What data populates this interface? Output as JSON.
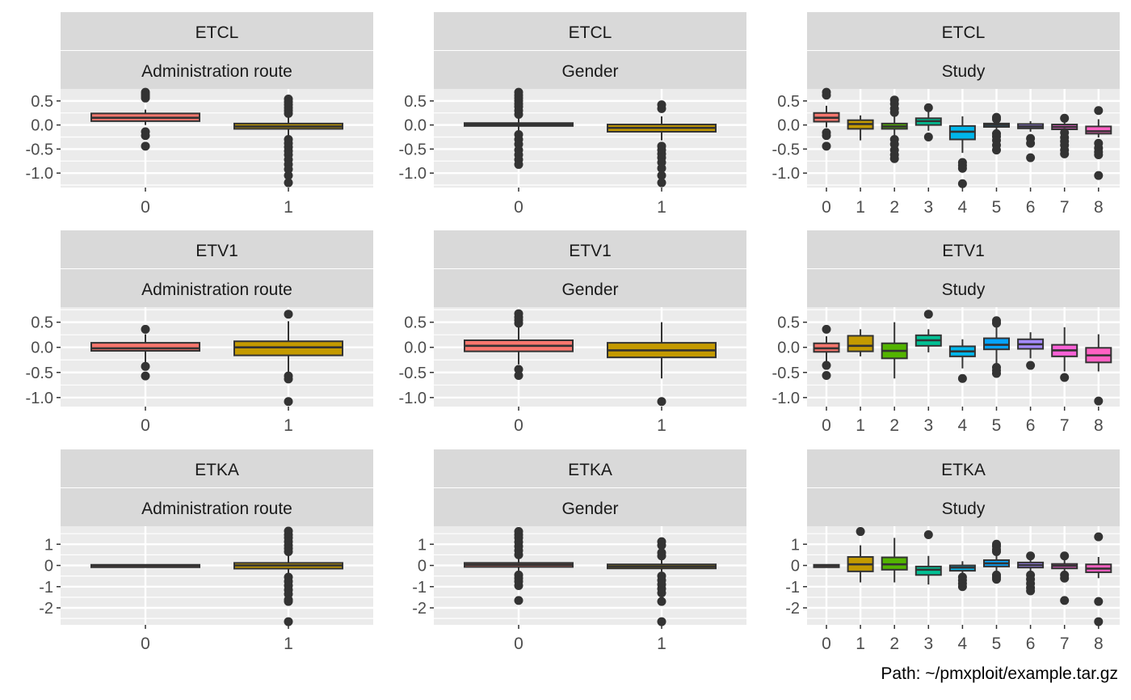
{
  "caption": "Path: ~/pmxploit/example.tar.gz",
  "colors": {
    "panel_bg": "#ebebeb",
    "strip_bg": "#d9d9d9",
    "grid": "#ffffff",
    "box_outline": "#333333",
    "fill_admin_route": [
      "#F8766D",
      "#C49A00"
    ],
    "fill_gender": [
      "#F8766D",
      "#C49A00"
    ],
    "fill_study": [
      "#F8766D",
      "#C49A00",
      "#53B400",
      "#00C094",
      "#00B6EB",
      "#06A4FF",
      "#A58AFF",
      "#FB61D7",
      "#FF61C3"
    ]
  },
  "chart_data": [
    {
      "type": "boxplot",
      "strip_top": "ETCL",
      "strip_bottom": "Administration route",
      "categories": [
        "0",
        "1"
      ],
      "yticks": [
        "0.5",
        "0.0",
        "-0.5",
        "-1.0"
      ],
      "ylim": [
        -1.3,
        0.75
      ],
      "boxes": [
        {
          "q1": 0.08,
          "median": 0.15,
          "q3": 0.24,
          "lo": 0.0,
          "hi": 0.32,
          "outliers": [
            0.68,
            0.64,
            0.6,
            0.56,
            -0.14,
            -0.22,
            -0.44
          ]
        },
        {
          "q1": -0.08,
          "median": -0.03,
          "q3": 0.03,
          "lo": -0.22,
          "hi": 0.18,
          "outliers": [
            0.54,
            0.48,
            0.42,
            0.36,
            0.3,
            0.24,
            -0.3,
            -0.38,
            -0.46,
            -0.54,
            -0.62,
            -0.72,
            -0.82,
            -0.92,
            -1.05,
            -1.2
          ]
        }
      ]
    },
    {
      "type": "boxplot",
      "strip_top": "ETCL",
      "strip_bottom": "Gender",
      "categories": [
        "0",
        "1"
      ],
      "yticks": [
        "0.5",
        "0.0",
        "-0.5",
        "-1.0"
      ],
      "ylim": [
        -1.3,
        0.75
      ],
      "boxes": [
        {
          "q1": -0.02,
          "median": 0.01,
          "q3": 0.04,
          "lo": -0.12,
          "hi": 0.14,
          "outliers": [
            0.68,
            0.62,
            0.56,
            0.5,
            0.44,
            0.38,
            0.3,
            0.22,
            -0.2,
            -0.3,
            -0.4,
            -0.52,
            -0.62,
            -0.72,
            -0.82
          ]
        },
        {
          "q1": -0.14,
          "median": -0.06,
          "q3": 0.01,
          "lo": -0.32,
          "hi": 0.18,
          "outliers": [
            0.42,
            0.34,
            -0.44,
            -0.52,
            -0.6,
            -0.68,
            -0.78,
            -0.9,
            -1.05,
            -1.2
          ]
        }
      ]
    },
    {
      "type": "boxplot",
      "strip_top": "ETCL",
      "strip_bottom": "Study",
      "categories": [
        "0",
        "1",
        "2",
        "3",
        "4",
        "5",
        "6",
        "7",
        "8"
      ],
      "yticks": [
        "0.5",
        "0.0",
        "-0.5",
        "-1.0"
      ],
      "ylim": [
        -1.3,
        0.75
      ],
      "boxes": [
        {
          "q1": 0.07,
          "median": 0.15,
          "q3": 0.25,
          "lo": -0.05,
          "hi": 0.4,
          "outliers": [
            0.68,
            0.62,
            -0.16,
            -0.22,
            -0.44
          ]
        },
        {
          "q1": -0.08,
          "median": 0.02,
          "q3": 0.1,
          "lo": -0.32,
          "hi": 0.2,
          "outliers": []
        },
        {
          "q1": -0.08,
          "median": -0.03,
          "q3": 0.03,
          "lo": -0.24,
          "hi": 0.2,
          "outliers": [
            0.52,
            0.44,
            0.34,
            0.26,
            -0.3,
            -0.4,
            -0.52,
            -0.62,
            -0.7
          ]
        },
        {
          "q1": 0.0,
          "median": 0.08,
          "q3": 0.14,
          "lo": -0.12,
          "hi": 0.3,
          "outliers": [
            0.36,
            -0.25
          ]
        },
        {
          "q1": -0.3,
          "median": -0.14,
          "q3": -0.02,
          "lo": -0.58,
          "hi": 0.18,
          "outliers": [
            -0.78,
            -0.84,
            -0.9,
            -1.22
          ]
        },
        {
          "q1": -0.04,
          "median": 0.0,
          "q3": 0.03,
          "lo": -0.16,
          "hi": 0.12,
          "outliers": [
            0.16,
            0.12,
            -0.18,
            -0.24,
            -0.32,
            -0.42,
            -0.52
          ]
        },
        {
          "q1": -0.07,
          "median": -0.03,
          "q3": 0.02,
          "lo": -0.14,
          "hi": 0.08,
          "outliers": [
            -0.28,
            -0.38,
            -0.68
          ]
        },
        {
          "q1": -0.09,
          "median": -0.04,
          "q3": 0.01,
          "lo": -0.16,
          "hi": 0.12,
          "outliers": [
            0.14,
            -0.16,
            -0.26,
            -0.34,
            -0.42,
            -0.52,
            -0.6
          ]
        },
        {
          "q1": -0.18,
          "median": -0.13,
          "q3": -0.03,
          "lo": -0.26,
          "hi": 0.12,
          "outliers": [
            0.3,
            -0.38,
            -0.48,
            -0.56,
            -0.62,
            -1.05
          ]
        }
      ]
    },
    {
      "type": "boxplot",
      "strip_top": "ETV1",
      "strip_bottom": "Administration route",
      "categories": [
        "0",
        "1"
      ],
      "yticks": [
        "0.5",
        "0.0",
        "-0.5",
        "-1.0"
      ],
      "ylim": [
        -1.18,
        0.8
      ],
      "boxes": [
        {
          "q1": -0.07,
          "median": -0.02,
          "q3": 0.09,
          "lo": -0.3,
          "hi": 0.26,
          "outliers": [
            0.36,
            -0.38,
            -0.57
          ]
        },
        {
          "q1": -0.16,
          "median": 0.0,
          "q3": 0.12,
          "lo": -0.52,
          "hi": 0.52,
          "outliers": [
            0.66,
            -0.57,
            -0.63,
            -1.08
          ]
        }
      ]
    },
    {
      "type": "boxplot",
      "strip_top": "ETV1",
      "strip_bottom": "Gender",
      "categories": [
        "0",
        "1"
      ],
      "yticks": [
        "0.5",
        "0.0",
        "-0.5",
        "-1.0"
      ],
      "ylim": [
        -1.18,
        0.8
      ],
      "boxes": [
        {
          "q1": -0.08,
          "median": 0.03,
          "q3": 0.14,
          "lo": -0.34,
          "hi": 0.44,
          "outliers": [
            0.67,
            0.6,
            0.54,
            0.48,
            -0.44,
            -0.56
          ]
        },
        {
          "q1": -0.2,
          "median": -0.06,
          "q3": 0.09,
          "lo": -0.62,
          "hi": 0.5,
          "outliers": [
            -1.08
          ]
        }
      ]
    },
    {
      "type": "boxplot",
      "strip_top": "ETV1",
      "strip_bottom": "Study",
      "categories": [
        "0",
        "1",
        "2",
        "3",
        "4",
        "5",
        "6",
        "7",
        "8"
      ],
      "yticks": [
        "0.5",
        "0.0",
        "-0.5",
        "-1.0"
      ],
      "ylim": [
        -1.18,
        0.8
      ],
      "boxes": [
        {
          "q1": -0.09,
          "median": -0.02,
          "q3": 0.08,
          "lo": -0.3,
          "hi": 0.22,
          "outliers": [
            0.36,
            -0.36,
            -0.56
          ]
        },
        {
          "q1": -0.08,
          "median": 0.03,
          "q3": 0.23,
          "lo": -0.18,
          "hi": 0.36,
          "outliers": []
        },
        {
          "q1": -0.22,
          "median": -0.07,
          "q3": 0.08,
          "lo": -0.62,
          "hi": 0.5,
          "outliers": []
        },
        {
          "q1": 0.03,
          "median": 0.14,
          "q3": 0.24,
          "lo": -0.1,
          "hi": 0.36,
          "outliers": [
            0.66
          ]
        },
        {
          "q1": -0.18,
          "median": -0.08,
          "q3": 0.02,
          "lo": -0.42,
          "hi": 0.16,
          "outliers": [
            -0.62
          ]
        },
        {
          "q1": -0.04,
          "median": 0.05,
          "q3": 0.18,
          "lo": -0.32,
          "hi": 0.42,
          "outliers": [
            0.53,
            0.48,
            -0.4,
            -0.46,
            -0.52
          ]
        },
        {
          "q1": -0.03,
          "median": 0.06,
          "q3": 0.16,
          "lo": -0.22,
          "hi": 0.3,
          "outliers": [
            -0.36
          ]
        },
        {
          "q1": -0.18,
          "median": -0.06,
          "q3": 0.05,
          "lo": -0.48,
          "hi": 0.4,
          "outliers": [
            -0.6
          ]
        },
        {
          "q1": -0.3,
          "median": -0.16,
          "q3": -0.01,
          "lo": -0.48,
          "hi": 0.26,
          "outliers": [
            -1.07
          ]
        }
      ]
    },
    {
      "type": "boxplot",
      "strip_top": "ETKA",
      "strip_bottom": "Administration route",
      "categories": [
        "0",
        "1"
      ],
      "yticks": [
        "1",
        "0",
        "-1",
        "-2"
      ],
      "ylim": [
        -2.8,
        1.85
      ],
      "boxes": [
        {
          "q1": -0.03,
          "median": 0.0,
          "q3": 0.03,
          "lo": -0.05,
          "hi": 0.05,
          "outliers": []
        },
        {
          "q1": -0.15,
          "median": 0.0,
          "q3": 0.12,
          "lo": -0.45,
          "hi": 0.5,
          "outliers": [
            1.62,
            1.45,
            1.3,
            1.12,
            0.95,
            0.8,
            0.65,
            -0.55,
            -0.75,
            -0.95,
            -1.15,
            -1.35,
            -1.62,
            -1.7,
            -2.65
          ]
        }
      ]
    },
    {
      "type": "boxplot",
      "strip_top": "ETKA",
      "strip_bottom": "Gender",
      "categories": [
        "0",
        "1"
      ],
      "yticks": [
        "1",
        "0",
        "-1",
        "-2"
      ],
      "ylim": [
        -2.8,
        1.85
      ],
      "boxes": [
        {
          "q1": -0.07,
          "median": 0.03,
          "q3": 0.12,
          "lo": -0.3,
          "hi": 0.35,
          "outliers": [
            1.6,
            1.45,
            1.3,
            1.1,
            0.9,
            0.7,
            0.5,
            -0.45,
            -0.6,
            -0.75,
            -0.95,
            -1.65
          ]
        },
        {
          "q1": -0.14,
          "median": -0.05,
          "q3": 0.05,
          "lo": -0.3,
          "hi": 0.3,
          "outliers": [
            1.12,
            0.95,
            0.6,
            0.45,
            -0.5,
            -0.7,
            -0.9,
            -1.1,
            -1.3,
            -1.7,
            -2.65
          ]
        }
      ]
    },
    {
      "type": "boxplot",
      "strip_top": "ETKA",
      "strip_bottom": "Study",
      "categories": [
        "0",
        "1",
        "2",
        "3",
        "4",
        "5",
        "6",
        "7",
        "8"
      ],
      "yticks": [
        "1",
        "0",
        "-1",
        "-2"
      ],
      "ylim": [
        -2.8,
        1.85
      ],
      "boxes": [
        {
          "q1": -0.03,
          "median": 0.0,
          "q3": 0.03,
          "lo": -0.05,
          "hi": 0.05,
          "outliers": []
        },
        {
          "q1": -0.28,
          "median": 0.05,
          "q3": 0.4,
          "lo": -0.8,
          "hi": 0.95,
          "outliers": [
            1.6
          ]
        },
        {
          "q1": -0.2,
          "median": 0.05,
          "q3": 0.38,
          "lo": -0.8,
          "hi": 1.3,
          "outliers": []
        },
        {
          "q1": -0.45,
          "median": -0.2,
          "q3": -0.05,
          "lo": -0.9,
          "hi": 0.45,
          "outliers": [
            1.45
          ]
        },
        {
          "q1": -0.25,
          "median": -0.1,
          "q3": 0.0,
          "lo": -0.4,
          "hi": 0.2,
          "outliers": [
            -0.55,
            -0.7,
            -0.85,
            -1.0
          ]
        },
        {
          "q1": -0.05,
          "median": 0.1,
          "q3": 0.25,
          "lo": -0.4,
          "hi": 0.6,
          "outliers": [
            1.0,
            0.9,
            0.75,
            0.65,
            -0.45,
            -0.55,
            -0.65
          ]
        },
        {
          "q1": -0.1,
          "median": 0.02,
          "q3": 0.14,
          "lo": -0.3,
          "hi": 0.3,
          "outliers": [
            0.45,
            -0.45,
            -0.65,
            -0.85,
            -1.05,
            -1.2
          ]
        },
        {
          "q1": -0.14,
          "median": -0.02,
          "q3": 0.07,
          "lo": -0.4,
          "hi": 0.4,
          "outliers": [
            0.45,
            -0.45,
            -0.6,
            -1.65
          ]
        },
        {
          "q1": -0.32,
          "median": -0.15,
          "q3": 0.05,
          "lo": -0.6,
          "hi": 0.4,
          "outliers": [
            1.35,
            -1.7,
            -2.65
          ]
        }
      ]
    }
  ]
}
